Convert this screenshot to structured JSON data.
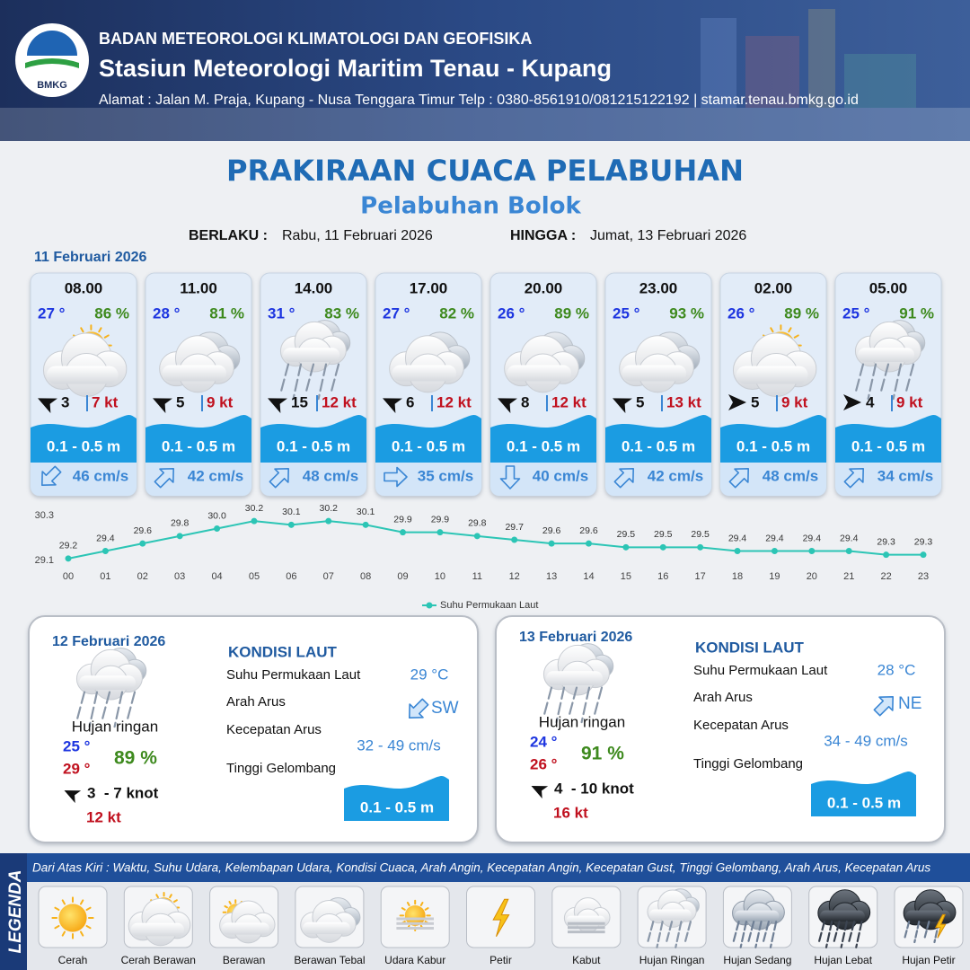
{
  "header": {
    "logo": "BMKG",
    "org": "BADAN METEOROLOGI KLIMATOLOGI DAN GEOFISIKA",
    "station": "Stasiun Meteorologi Maritim Tenau - Kupang",
    "address": "Alamat : Jalan M. Praja, Kupang - Nusa Tenggara Timur Telp : 0380-8561910/081215122192  | stamar.tenau.bmkg.go.id"
  },
  "title": "PRAKIRAAN CUACA PELABUHAN",
  "subtitle": "Pelabuhan Bolok",
  "validity": {
    "from_label": "BERLAKU :",
    "from": "Rabu, 11 Februari 2026",
    "to_label": "HINGGA :",
    "to": "Jumat, 13 Februari 2026"
  },
  "forecast": {
    "date": "11 Februari 2026",
    "cards": [
      {
        "time": "08.00",
        "temp": "27 °",
        "humidity": "86 %",
        "wind": "3",
        "gust": "7 kt",
        "wave": "0.1 - 0.5 m",
        "current": "46 cm/s"
      },
      {
        "time": "11.00",
        "temp": "28 °",
        "humidity": "81 %",
        "wind": "5",
        "gust": "9 kt",
        "wave": "0.1 - 0.5 m",
        "current": "42 cm/s"
      },
      {
        "time": "14.00",
        "temp": "31 °",
        "humidity": "83 %",
        "wind": "15",
        "gust": "12 kt",
        "wave": "0.1 - 0.5 m",
        "current": "48 cm/s"
      },
      {
        "time": "17.00",
        "temp": "27 °",
        "humidity": "82 %",
        "wind": "6",
        "gust": "12 kt",
        "wave": "0.1 - 0.5 m",
        "current": "35 cm/s"
      },
      {
        "time": "20.00",
        "temp": "26 °",
        "humidity": "89 %",
        "wind": "8",
        "gust": "12 kt",
        "wave": "0.1 - 0.5 m",
        "current": "40 cm/s"
      },
      {
        "time": "23.00",
        "temp": "25 °",
        "humidity": "93 %",
        "wind": "5",
        "gust": "13 kt",
        "wave": "0.1 - 0.5 m",
        "current": "42 cm/s"
      },
      {
        "time": "02.00",
        "temp": "26 °",
        "humidity": "89 %",
        "wind": "5",
        "gust": "9 kt",
        "wave": "0.1 - 0.5 m",
        "current": "48 cm/s"
      },
      {
        "time": "05.00",
        "temp": "25 °",
        "humidity": "91 %",
        "wind": "4",
        "gust": "9 kt",
        "wave": "0.1 - 0.5 m",
        "current": "34 cm/s"
      }
    ]
  },
  "chart_data": {
    "type": "line",
    "categories": [
      "00",
      "01",
      "02",
      "03",
      "04",
      "05",
      "06",
      "07",
      "08",
      "09",
      "10",
      "11",
      "12",
      "13",
      "14",
      "15",
      "16",
      "17",
      "18",
      "19",
      "20",
      "21",
      "22",
      "23"
    ],
    "series": [
      {
        "name": "Suhu Permukaan Laut",
        "color": "#2cc5b5",
        "values": [
          29.2,
          29.4,
          29.6,
          29.8,
          30.0,
          30.2,
          30.1,
          30.2,
          30.1,
          29.9,
          29.9,
          29.8,
          29.7,
          29.6,
          29.6,
          29.5,
          29.5,
          29.5,
          29.4,
          29.4,
          29.4,
          29.4,
          29.3,
          29.3
        ],
        "value_labels": [
          "29.2",
          "29.4",
          "29.6",
          "29.8",
          "30.0",
          "30.2",
          "30.1",
          "30.2",
          "30.1",
          "29.9",
          "29.9",
          "29.8",
          "29.7",
          "29.6",
          "29.6",
          "29.5",
          "29.5",
          "29.5",
          "29.4",
          "29.4",
          "29.4",
          "29.4",
          "29.3",
          "29.3"
        ]
      }
    ],
    "ylim": [
      29.1,
      30.3
    ],
    "yticks": [
      29.1,
      30.3
    ],
    "grid": false,
    "legend": "bottom"
  },
  "days": [
    {
      "date": "12 Februari 2026",
      "condition": "Hujan ringan",
      "temp_min": "25 °",
      "temp_max": "29 °",
      "humidity": "89 %",
      "wind": "3  - 7 knot",
      "gust": "12 kt",
      "sea": {
        "heading": "KONDISI LAUT",
        "rows": [
          {
            "label": "Suhu Permukaan Laut",
            "value": "29 °C"
          },
          {
            "label": "Arah Arus",
            "value": "SW"
          },
          {
            "label": "Kecepatan Arus",
            "value": "32 - 49 cm/s"
          },
          {
            "label": "Tinggi Gelombang",
            "value": "0.1 - 0.5 m"
          }
        ]
      }
    },
    {
      "date": "13 Februari 2026",
      "condition": "Hujan ringan",
      "temp_min": "24 °",
      "temp_max": "26 °",
      "humidity": "91 %",
      "wind": "4  - 10 knot",
      "gust": "16 kt",
      "sea": {
        "heading": "KONDISI LAUT",
        "rows": [
          {
            "label": "Suhu Permukaan Laut",
            "value": "28 °C"
          },
          {
            "label": "Arah Arus",
            "value": "NE"
          },
          {
            "label": "Kecepatan Arus",
            "value": "34 - 49 cm/s"
          },
          {
            "label": "Tinggi Gelombang",
            "value": "0.1 - 0.5 m"
          }
        ]
      }
    }
  ],
  "legend": {
    "title": "LEGENDA",
    "description": "Dari Atas Kiri : Waktu, Suhu Udara, Kelembapan Udara, Kondisi Cuaca, Arah Angin, Kecepatan Angin, Kecepatan Gust, Tinggi Gelombang, Arah Arus, Kecepatan Arus",
    "items": [
      "Cerah",
      "Cerah Berawan",
      "Berawan",
      "Berawan Tebal",
      "Udara Kabur",
      "Petir",
      "Kabut",
      "Hujan Ringan",
      "Hujan Sedang",
      "Hujan Lebat",
      "Hujan Petir"
    ]
  }
}
